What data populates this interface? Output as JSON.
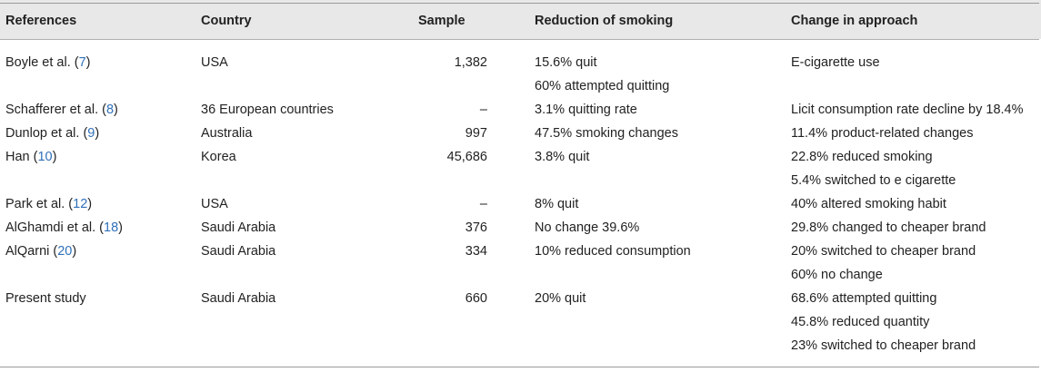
{
  "headers": {
    "references": "References",
    "country": "Country",
    "sample": "Sample",
    "reduction": "Reduction of smoking",
    "change": "Change in approach"
  },
  "rows": [
    {
      "ref_text": "Boyle et al. (",
      "ref_num": "7",
      "ref_close": ")",
      "country": "USA",
      "sample": "1,382",
      "reduction": [
        "15.6% quit",
        "60% attempted quitting"
      ],
      "change": [
        "E-cigarette use"
      ]
    },
    {
      "ref_text": "Schafferer et al. (",
      "ref_num": "8",
      "ref_close": ")",
      "country": "36 European countries",
      "sample": "–",
      "reduction": [
        "3.1% quitting rate"
      ],
      "change": [
        "Licit consumption rate decline by 18.4%"
      ]
    },
    {
      "ref_text": "Dunlop et al. (",
      "ref_num": "9",
      "ref_close": ")",
      "country": "Australia",
      "sample": "997",
      "reduction": [
        "47.5% smoking changes"
      ],
      "change": [
        "11.4% product-related changes"
      ]
    },
    {
      "ref_text": "Han (",
      "ref_num": "10",
      "ref_close": ")",
      "country": "Korea",
      "sample": "45,686",
      "reduction": [
        "3.8% quit"
      ],
      "change": [
        "22.8% reduced smoking",
        "5.4% switched to e cigarette"
      ]
    },
    {
      "ref_text": "Park et al. (",
      "ref_num": "12",
      "ref_close": ")",
      "country": "USA",
      "sample": "–",
      "reduction": [
        "8% quit"
      ],
      "change": [
        "40% altered smoking habit"
      ]
    },
    {
      "ref_text": "AlGhamdi et al. (",
      "ref_num": "18",
      "ref_close": ")",
      "country": "Saudi Arabia",
      "sample": "376",
      "reduction": [
        "No change 39.6%"
      ],
      "change": [
        "29.8% changed to cheaper brand"
      ]
    },
    {
      "ref_text": "AlQarni (",
      "ref_num": "20",
      "ref_close": ")",
      "country": "Saudi Arabia",
      "sample": "334",
      "reduction": [
        "10% reduced consumption"
      ],
      "change": [
        "20% switched to cheaper brand",
        "60% no change"
      ]
    },
    {
      "ref_text": "Present study",
      "ref_num": "",
      "ref_close": "",
      "country": "Saudi Arabia",
      "sample": "660",
      "reduction": [
        "20% quit"
      ],
      "change": [
        "68.6% attempted quitting",
        "45.8% reduced quantity",
        "23% switched to cheaper brand"
      ]
    }
  ]
}
